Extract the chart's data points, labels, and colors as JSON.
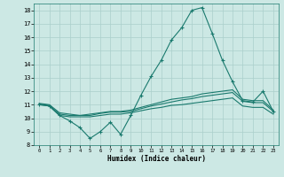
{
  "xlabel": "Humidex (Indice chaleur)",
  "x": [
    0,
    1,
    2,
    3,
    4,
    5,
    6,
    7,
    8,
    9,
    10,
    11,
    12,
    13,
    14,
    15,
    16,
    17,
    18,
    19,
    20,
    21,
    22,
    23
  ],
  "line1": [
    11.0,
    10.9,
    10.2,
    9.8,
    9.3,
    8.5,
    9.0,
    9.7,
    8.8,
    10.2,
    11.7,
    13.1,
    14.3,
    15.8,
    16.7,
    18.0,
    18.2,
    16.3,
    14.3,
    12.7,
    11.3,
    11.2,
    12.0,
    10.5
  ],
  "line2": [
    11.1,
    11.0,
    10.4,
    10.3,
    10.2,
    10.3,
    10.4,
    10.5,
    10.5,
    10.6,
    10.8,
    11.0,
    11.2,
    11.4,
    11.5,
    11.6,
    11.8,
    11.9,
    12.0,
    12.1,
    11.4,
    11.3,
    11.3,
    10.6
  ],
  "line3": [
    11.05,
    10.95,
    10.3,
    10.2,
    10.2,
    10.2,
    10.35,
    10.45,
    10.45,
    10.5,
    10.7,
    10.9,
    11.05,
    11.2,
    11.35,
    11.45,
    11.6,
    11.7,
    11.8,
    11.9,
    11.25,
    11.15,
    11.15,
    10.5
  ],
  "line4": [
    11.0,
    10.9,
    10.2,
    10.1,
    10.1,
    10.1,
    10.2,
    10.3,
    10.3,
    10.4,
    10.55,
    10.7,
    10.8,
    10.95,
    11.0,
    11.1,
    11.2,
    11.3,
    11.4,
    11.5,
    10.9,
    10.8,
    10.8,
    10.3
  ],
  "line_color": "#1a7a6e",
  "bg_color": "#cce8e4",
  "grid_color": "#aacfcb",
  "ylim": [
    8,
    18.5
  ],
  "xlim": [
    -0.5,
    23.5
  ],
  "yticks": [
    8,
    9,
    10,
    11,
    12,
    13,
    14,
    15,
    16,
    17,
    18
  ],
  "xticks": [
    0,
    1,
    2,
    3,
    4,
    5,
    6,
    7,
    8,
    9,
    10,
    11,
    12,
    13,
    14,
    15,
    16,
    17,
    18,
    19,
    20,
    21,
    22,
    23
  ]
}
